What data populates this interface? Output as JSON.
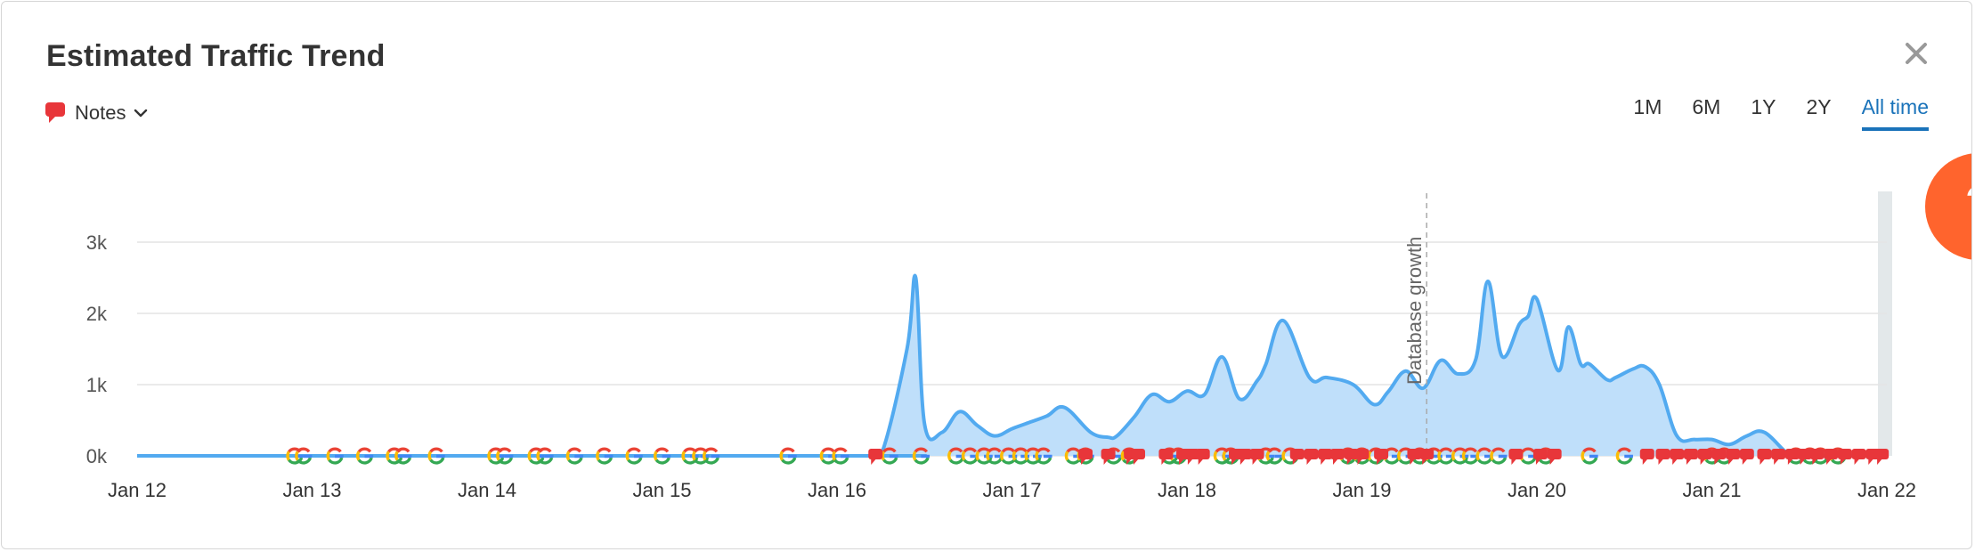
{
  "header": {
    "title": "Estimated Traffic Trend"
  },
  "notes": {
    "label": "Notes"
  },
  "tabs": [
    {
      "label": "1M",
      "active": false
    },
    {
      "label": "6M",
      "active": false
    },
    {
      "label": "1Y",
      "active": false
    },
    {
      "label": "2Y",
      "active": false
    },
    {
      "label": "All time",
      "active": true
    }
  ],
  "help": {
    "label": "?"
  },
  "colors": {
    "line": "#52aaf0",
    "fill": "#bfdffa",
    "accent": "#1a73ba",
    "note": "#e8363a",
    "help": "#ff642d"
  },
  "chart_data": {
    "type": "area",
    "title": "",
    "xlabel": "",
    "ylabel": "",
    "x_ticks": [
      "Jan 12",
      "Jan 13",
      "Jan 14",
      "Jan 15",
      "Jan 16",
      "Jan 17",
      "Jan 18",
      "Jan 19",
      "Jan 20",
      "Jan 21",
      "Jan 22"
    ],
    "y_ticks": [
      "0k",
      "1k",
      "2k",
      "3k"
    ],
    "ylim": [
      0,
      3000
    ],
    "grid": true,
    "x": [
      12.0,
      16.15,
      16.25,
      16.4,
      16.45,
      16.5,
      16.6,
      16.7,
      16.8,
      16.9,
      17.0,
      17.1,
      17.2,
      17.3,
      17.45,
      17.55,
      17.6,
      17.7,
      17.8,
      17.9,
      18.0,
      18.1,
      18.2,
      18.3,
      18.4,
      18.45,
      18.55,
      18.7,
      18.8,
      18.95,
      19.07,
      19.15,
      19.25,
      19.35,
      19.45,
      19.55,
      19.65,
      19.72,
      19.8,
      19.9,
      19.95,
      20.0,
      20.12,
      20.18,
      20.25,
      20.3,
      20.4,
      20.45,
      20.55,
      20.62,
      20.7,
      20.8,
      20.9,
      21.0,
      21.1,
      21.2,
      21.3,
      21.45,
      21.55,
      21.65,
      21.75,
      21.85,
      21.95
    ],
    "y": [
      0,
      0,
      0,
      1500,
      2500,
      450,
      330,
      620,
      430,
      280,
      380,
      470,
      560,
      680,
      330,
      260,
      280,
      550,
      860,
      760,
      910,
      860,
      1390,
      800,
      1050,
      1280,
      1900,
      1100,
      1100,
      1000,
      720,
      900,
      1190,
      950,
      1340,
      1150,
      1350,
      2450,
      1400,
      1850,
      1960,
      2200,
      1200,
      1810,
      1290,
      1290,
      1070,
      1100,
      1220,
      1250,
      1000,
      280,
      230,
      230,
      160,
      280,
      330,
      0,
      0,
      0,
      0,
      0,
      0
    ],
    "annotations": [
      {
        "label": "Database growth",
        "x": 19.37
      }
    ]
  },
  "markers": {
    "google": [
      12.9,
      12.95,
      13.13,
      13.3,
      13.47,
      13.52,
      13.71,
      14.05,
      14.1,
      14.28,
      14.33,
      14.5,
      14.67,
      14.84,
      15.0,
      15.16,
      15.22,
      15.28,
      15.72,
      15.95,
      16.02,
      16.3,
      16.48,
      16.68,
      16.76,
      16.84,
      16.9,
      16.98,
      17.05,
      17.12,
      17.18,
      17.35,
      17.42,
      17.58,
      17.67,
      17.9,
      17.95,
      18.2,
      18.25,
      18.45,
      18.5,
      18.59,
      18.92,
      19.0,
      19.08,
      19.17,
      19.25,
      19.33,
      19.41,
      19.48,
      19.56,
      19.62,
      19.7,
      19.78,
      19.95,
      20.05,
      20.3,
      20.5,
      21.0,
      21.07,
      21.48,
      21.56,
      21.62,
      21.72
    ],
    "notes": [
      16.22,
      17.42,
      17.55,
      17.68,
      17.72,
      17.88,
      17.98,
      18.03,
      18.09,
      18.28,
      18.33,
      18.4,
      18.63,
      18.71,
      18.79,
      18.86,
      18.94,
      19.0,
      19.11,
      19.3,
      19.37,
      19.88,
      20.02,
      20.1,
      20.63,
      20.72,
      20.8,
      20.88,
      20.96,
      21.04,
      21.12,
      21.2,
      21.3,
      21.38,
      21.46,
      21.53,
      21.6,
      21.68,
      21.76,
      21.84,
      21.92,
      21.97
    ]
  }
}
